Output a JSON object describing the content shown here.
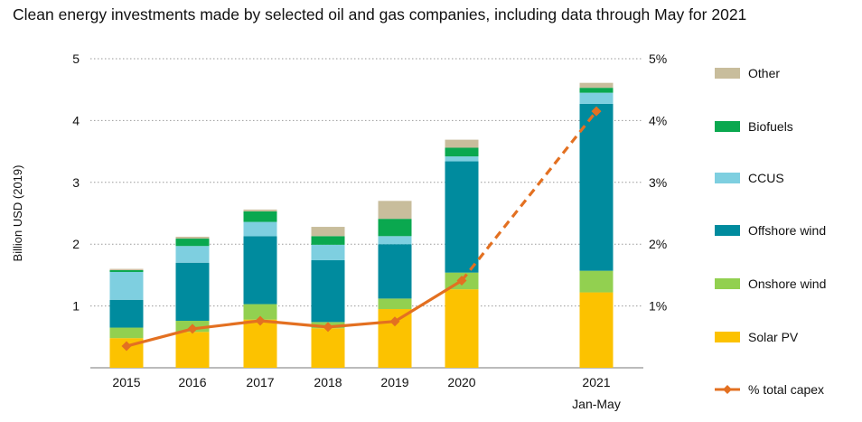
{
  "chart_data": {
    "type": "bar",
    "title": "Clean energy investments made by selected oil and gas companies, including data through May for 2021",
    "ylabel": "Billion USD (2019)",
    "ylim": [
      0,
      5
    ],
    "y_ticks": [
      "1",
      "2",
      "3",
      "4",
      "5"
    ],
    "y2lim": [
      0,
      5
    ],
    "y2_ticks": [
      "1%",
      "2%",
      "3%",
      "4%",
      "5%"
    ],
    "grid": true,
    "legend_position": "right",
    "categories": [
      "2015",
      "2016",
      "2017",
      "2018",
      "2019",
      "2020",
      "2021"
    ],
    "category_sublabels": [
      "",
      "",
      "",
      "",
      "",
      "",
      "Jan-May"
    ],
    "stacked": true,
    "series": [
      {
        "name": "Solar PV",
        "color": "#fcc200",
        "values": [
          0.48,
          0.58,
          0.78,
          0.64,
          0.95,
          1.27,
          1.22
        ]
      },
      {
        "name": "Onshore wind",
        "color": "#92d050",
        "values": [
          0.17,
          0.18,
          0.25,
          0.1,
          0.17,
          0.27,
          0.35
        ]
      },
      {
        "name": "Offshore wind",
        "color": "#008b9e",
        "values": [
          0.45,
          0.94,
          1.1,
          1.0,
          0.88,
          1.8,
          2.7
        ]
      },
      {
        "name": "CCUS",
        "color": "#7ecfe0",
        "values": [
          0.45,
          0.27,
          0.23,
          0.25,
          0.13,
          0.08,
          0.18
        ]
      },
      {
        "name": "Biofuels",
        "color": "#0aa84f",
        "values": [
          0.03,
          0.12,
          0.17,
          0.14,
          0.28,
          0.14,
          0.08
        ]
      },
      {
        "name": "Other",
        "color": "#c8bd9c",
        "values": [
          0.02,
          0.03,
          0.03,
          0.15,
          0.29,
          0.13,
          0.08
        ]
      }
    ],
    "line_series": {
      "name": "% total capex",
      "color": "#e37021",
      "axis": "right",
      "unit": "%",
      "values": [
        0.35,
        0.63,
        0.76,
        0.66,
        0.75,
        1.41,
        4.15
      ],
      "dashed_from_index": 5
    }
  }
}
